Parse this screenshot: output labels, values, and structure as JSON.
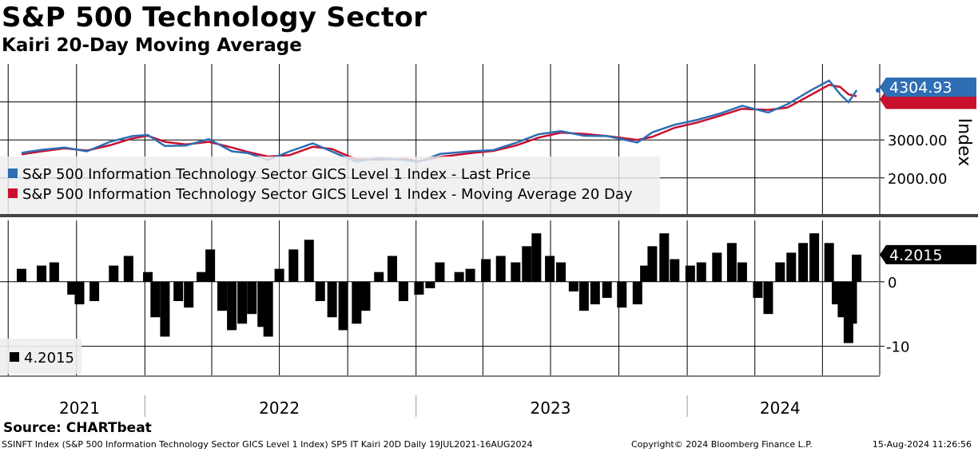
{
  "title": "S&P 500 Technology Sector",
  "subtitle": "Kairi 20-Day Moving Average",
  "source": "Source: CHARTbeat",
  "footer": {
    "left": "SSINFT Index (S&P 500 Information Technology Sector GICS Level 1 Index) SP5 IT Kairi 20D  Daily 19JUL2021-16AUG2024",
    "copyright": "Copyright© 2024 Bloomberg Finance L.P.",
    "timestamp": "15-Aug-2024 11:26:56"
  },
  "chart_data": [
    {
      "type": "line",
      "ylabel": "Index",
      "ylim": [
        1050,
        5000
      ],
      "yticks": [
        "3000.00",
        "2000.00"
      ],
      "xlabels": [
        "2021",
        "2022",
        "2023",
        "2024"
      ],
      "grid": true,
      "legend_position": "bottom-left",
      "last_value_label": "4304.93",
      "series": [
        {
          "name": "S&P 500 Information Technology Sector GICS Level 1 Index - Last Price",
          "color": "#2e6eb5",
          "x": [
            "2021-07-19",
            "2021-08-15",
            "2021-09-15",
            "2021-10-15",
            "2021-11-15",
            "2021-12-15",
            "2022-01-05",
            "2022-01-28",
            "2022-02-25",
            "2022-03-28",
            "2022-04-28",
            "2022-05-20",
            "2022-06-16",
            "2022-07-15",
            "2022-08-15",
            "2022-09-10",
            "2022-09-30",
            "2022-10-13",
            "2022-11-10",
            "2022-12-15",
            "2023-01-05",
            "2023-02-02",
            "2023-03-15",
            "2023-04-15",
            "2023-05-15",
            "2023-06-15",
            "2023-07-15",
            "2023-08-15",
            "2023-09-15",
            "2023-10-26",
            "2023-11-15",
            "2023-12-15",
            "2024-01-15",
            "2024-02-15",
            "2024-03-15",
            "2024-04-19",
            "2024-05-15",
            "2024-06-15",
            "2024-07-10",
            "2024-07-25",
            "2024-08-05",
            "2024-08-16"
          ],
          "values": [
            2660,
            2740,
            2800,
            2700,
            2950,
            3100,
            3130,
            2840,
            2850,
            3020,
            2700,
            2650,
            2470,
            2700,
            2910,
            2690,
            2520,
            2430,
            2520,
            2470,
            2420,
            2630,
            2700,
            2730,
            2920,
            3150,
            3230,
            3110,
            3100,
            2930,
            3200,
            3400,
            3530,
            3700,
            3900,
            3720,
            3940,
            4300,
            4560,
            4200,
            3990,
            4305
          ]
        },
        {
          "name": "S&P 500 Information Technology Sector GICS Level 1 Index - Moving Average 20 Day",
          "color": "#c8102e",
          "x": [
            "2021-07-19",
            "2021-08-15",
            "2021-09-15",
            "2021-10-15",
            "2021-11-15",
            "2021-12-15",
            "2022-01-05",
            "2022-01-28",
            "2022-02-25",
            "2022-03-28",
            "2022-04-28",
            "2022-05-20",
            "2022-06-16",
            "2022-07-15",
            "2022-08-15",
            "2022-09-10",
            "2022-09-30",
            "2022-10-13",
            "2022-11-10",
            "2022-12-15",
            "2023-01-05",
            "2023-02-02",
            "2023-03-15",
            "2023-04-15",
            "2023-05-15",
            "2023-06-15",
            "2023-07-15",
            "2023-08-15",
            "2023-09-15",
            "2023-10-26",
            "2023-11-15",
            "2023-12-15",
            "2024-01-15",
            "2024-02-15",
            "2024-03-15",
            "2024-04-19",
            "2024-05-15",
            "2024-06-15",
            "2024-07-10",
            "2024-07-25",
            "2024-08-05",
            "2024-08-16"
          ],
          "values": [
            2620,
            2700,
            2780,
            2720,
            2860,
            3040,
            3110,
            2950,
            2880,
            2950,
            2800,
            2680,
            2560,
            2600,
            2820,
            2760,
            2590,
            2490,
            2480,
            2500,
            2440,
            2550,
            2650,
            2710,
            2850,
            3060,
            3190,
            3160,
            3100,
            3000,
            3080,
            3320,
            3460,
            3640,
            3820,
            3790,
            3850,
            4180,
            4450,
            4390,
            4200,
            4150
          ]
        }
      ]
    },
    {
      "type": "bar",
      "ylim": [
        -14.5,
        9.5
      ],
      "yticks": [
        "0",
        "-10"
      ],
      "last_value_label": "4.2015",
      "legend_position": "bottom-left",
      "series": [
        {
          "name": "4.2015",
          "color": "#000000",
          "x": [
            "2021-07-19",
            "2021-08-15",
            "2021-09-01",
            "2021-09-25",
            "2021-10-05",
            "2021-10-25",
            "2021-11-20",
            "2021-12-10",
            "2022-01-05",
            "2022-01-15",
            "2022-01-28",
            "2022-02-15",
            "2022-03-01",
            "2022-03-18",
            "2022-03-30",
            "2022-04-15",
            "2022-04-28",
            "2022-05-12",
            "2022-05-25",
            "2022-06-08",
            "2022-06-16",
            "2022-07-01",
            "2022-07-20",
            "2022-08-10",
            "2022-08-25",
            "2022-09-10",
            "2022-09-25",
            "2022-10-13",
            "2022-10-25",
            "2022-11-12",
            "2022-11-30",
            "2022-12-15",
            "2023-01-05",
            "2023-01-20",
            "2023-02-02",
            "2023-02-28",
            "2023-03-15",
            "2023-04-05",
            "2023-04-25",
            "2023-05-15",
            "2023-05-30",
            "2023-06-12",
            "2023-06-30",
            "2023-07-15",
            "2023-08-01",
            "2023-08-15",
            "2023-08-30",
            "2023-09-15",
            "2023-10-05",
            "2023-10-26",
            "2023-11-05",
            "2023-11-15",
            "2023-12-01",
            "2023-12-15",
            "2024-01-05",
            "2024-01-20",
            "2024-02-10",
            "2024-03-01",
            "2024-03-15",
            "2024-04-05",
            "2024-04-19",
            "2024-05-05",
            "2024-05-20",
            "2024-06-05",
            "2024-06-20",
            "2024-07-10",
            "2024-07-20",
            "2024-07-28",
            "2024-08-05",
            "2024-08-10",
            "2024-08-16"
          ],
          "values": [
            2.0,
            2.5,
            3.0,
            -2.0,
            -3.5,
            -3.0,
            2.5,
            4.0,
            1.5,
            -5.5,
            -8.5,
            -3.0,
            -4.0,
            1.5,
            5.0,
            -4.5,
            -7.5,
            -6.5,
            -5.0,
            -7.0,
            -8.5,
            2.0,
            5.0,
            6.5,
            -3.0,
            -5.5,
            -7.5,
            -6.5,
            -4.5,
            1.5,
            4.0,
            -3.0,
            -2.0,
            -1.0,
            3.0,
            1.5,
            2.0,
            3.5,
            4.0,
            3.0,
            5.5,
            7.5,
            4.0,
            3.0,
            -1.5,
            -4.5,
            -3.5,
            -2.5,
            -4.0,
            -3.5,
            2.5,
            5.5,
            7.5,
            3.5,
            2.5,
            3.0,
            4.5,
            6.0,
            3.0,
            -2.5,
            -5.0,
            3.0,
            4.5,
            6.0,
            7.5,
            6.0,
            -3.5,
            -5.5,
            -9.5,
            -6.5,
            4.2015
          ]
        }
      ]
    }
  ]
}
